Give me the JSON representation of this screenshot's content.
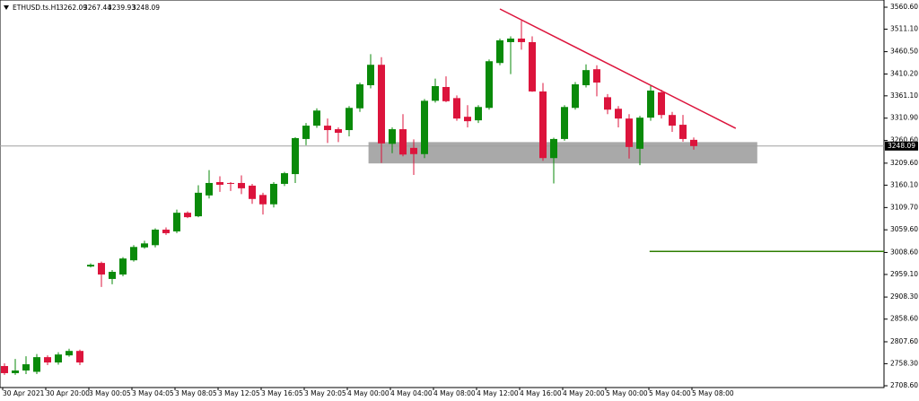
{
  "chart_data": {
    "type": "candlestick",
    "title": "ETHUSD.ts.H1",
    "categories": [
      "30 Apr 2021",
      null,
      null,
      null,
      "30 Apr 20:00",
      null,
      null,
      null,
      "3 May 00:05",
      null,
      null,
      null,
      "3 May 04:05",
      null,
      null,
      null,
      "3 May 08:05",
      null,
      null,
      null,
      "3 May 12:05",
      null,
      null,
      null,
      "3 May 16:05",
      null,
      null,
      null,
      "3 May 20:05",
      null,
      null,
      null,
      "4 May 00:00",
      null,
      null,
      null,
      "4 May 04:00",
      null,
      null,
      null,
      "4 May 08:00",
      null,
      null,
      null,
      "4 May 12:00",
      null,
      null,
      null,
      "4 May 16:00",
      null,
      null,
      null,
      "4 May 20:00",
      null,
      null,
      null,
      "5 May 00:00",
      null,
      null,
      null,
      "5 May 04:00",
      null,
      null,
      null,
      "5 May 08:00"
    ],
    "open": [
      2753,
      2737,
      2743,
      2740,
      2773,
      2761,
      2777,
      2787,
      2977,
      2985,
      2949,
      2959,
      2991,
      3020,
      3025,
      3060,
      3056,
      3098,
      3090,
      3137,
      3167,
      3165,
      3165,
      3159,
      3138,
      3117,
      3163,
      3185,
      3264,
      3294,
      3294,
      3286,
      3284,
      3333,
      3385,
      3431,
      3253,
      3286,
      3244,
      3230,
      3350,
      3381,
      3356,
      3314,
      3306,
      3334,
      3435,
      3482,
      3490,
      3482,
      3371,
      3221,
      3264,
      3334,
      3385,
      3421,
      3358,
      3332,
      3310,
      3242,
      3312,
      3369,
      3318,
      3296,
      3262.09
    ],
    "high": [
      2759,
      2769,
      2775,
      2780,
      2777,
      2784,
      2792,
      2790,
      2984,
      2988,
      2969,
      2998,
      3025,
      3035,
      3063,
      3065,
      3105,
      3101,
      3160,
      3194,
      3180,
      3167,
      3182,
      3163,
      3143,
      3167,
      3190,
      3268,
      3300,
      3333,
      3310,
      3290,
      3338,
      3391,
      3455,
      3448,
      3290,
      3320,
      3263,
      3354,
      3400,
      3405,
      3362,
      3340,
      3340,
      3443,
      3490,
      3495,
      3530,
      3495,
      3390,
      3267,
      3340,
      3392,
      3432,
      3430,
      3365,
      3338,
      3320,
      3316,
      3385,
      3375,
      3325,
      3318,
      3267.44
    ],
    "low": [
      2733,
      2733,
      2735,
      2735,
      2755,
      2756,
      2774,
      2755,
      2975,
      2931,
      2937,
      2955,
      2988,
      3017,
      3020,
      3048,
      3052,
      3086,
      3088,
      3130,
      3145,
      3147,
      3140,
      3118,
      3094,
      3110,
      3158,
      3165,
      3250,
      3289,
      3255,
      3257,
      3270,
      3325,
      3378,
      3210,
      3232,
      3225,
      3183,
      3221,
      3346,
      3347,
      3305,
      3290,
      3300,
      3330,
      3430,
      3410,
      3465,
      3370,
      3215,
      3164,
      3260,
      3330,
      3380,
      3360,
      3320,
      3290,
      3220,
      3205,
      3305,
      3310,
      3280,
      3258,
      3239.93
    ],
    "close": [
      2737,
      2743,
      2757,
      2773,
      2761,
      2779,
      2787,
      2761,
      2981,
      2959,
      2965,
      2995,
      3021,
      3029,
      3060,
      3052,
      3098,
      3088,
      3143,
      3165,
      3161,
      3163,
      3153,
      3129,
      3117,
      3163,
      3187,
      3266,
      3294,
      3328,
      3284,
      3278,
      3334,
      3387,
      3431,
      3254,
      3286,
      3229,
      3230,
      3350,
      3383,
      3349,
      3310,
      3304,
      3336,
      3439,
      3486,
      3490,
      3482,
      3371,
      3221,
      3264,
      3336,
      3387,
      3419,
      3391,
      3330,
      3310,
      3246,
      3312,
      3373,
      3318,
      3294,
      3264,
      3248.09
    ],
    "up_color": "#0a8a0a",
    "down_color": "#dc143c",
    "ylim": [
      2704.6,
      3576.8
    ],
    "yticks": [
      {
        "value": 3560.6,
        "label": "3560.60"
      },
      {
        "value": 3511.1,
        "label": "3511.10"
      },
      {
        "value": 3460.5,
        "label": "3460.50"
      },
      {
        "value": 3410.2,
        "label": "3410.20"
      },
      {
        "value": 3361.1,
        "label": "3361.10"
      },
      {
        "value": 3310.9,
        "label": "3310.90"
      },
      {
        "value": 3260.6,
        "label": "3260.60"
      },
      {
        "value": 3209.6,
        "label": "3209.60"
      },
      {
        "value": 3160.1,
        "label": "3160.10"
      },
      {
        "value": 3109.7,
        "label": "3109.70"
      },
      {
        "value": 3059.6,
        "label": "3059.60"
      },
      {
        "value": 3008.6,
        "label": "3008.60"
      },
      {
        "value": 2959.1,
        "label": "2959.10"
      },
      {
        "value": 2908.3,
        "label": "2908.30"
      },
      {
        "value": 2858.6,
        "label": "2858.60"
      },
      {
        "value": 2807.6,
        "label": "2807.60"
      },
      {
        "value": 2758.3,
        "label": "2758.30"
      },
      {
        "value": 2708.6,
        "label": "2708.60"
      }
    ],
    "zones": [
      {
        "x": [
          33.8,
          69.9
        ],
        "y": [
          3209,
          3257
        ],
        "color": "#a9a9a9"
      }
    ],
    "lines": [
      {
        "x": [
          46,
          67.9
        ],
        "y": [
          3556.6,
          3288
        ],
        "color": "#dc143c"
      },
      {
        "x": [
          59.9,
          81.7
        ],
        "y": [
          3011,
          3011
        ],
        "color": "#2e7d00"
      }
    ]
  }
}
